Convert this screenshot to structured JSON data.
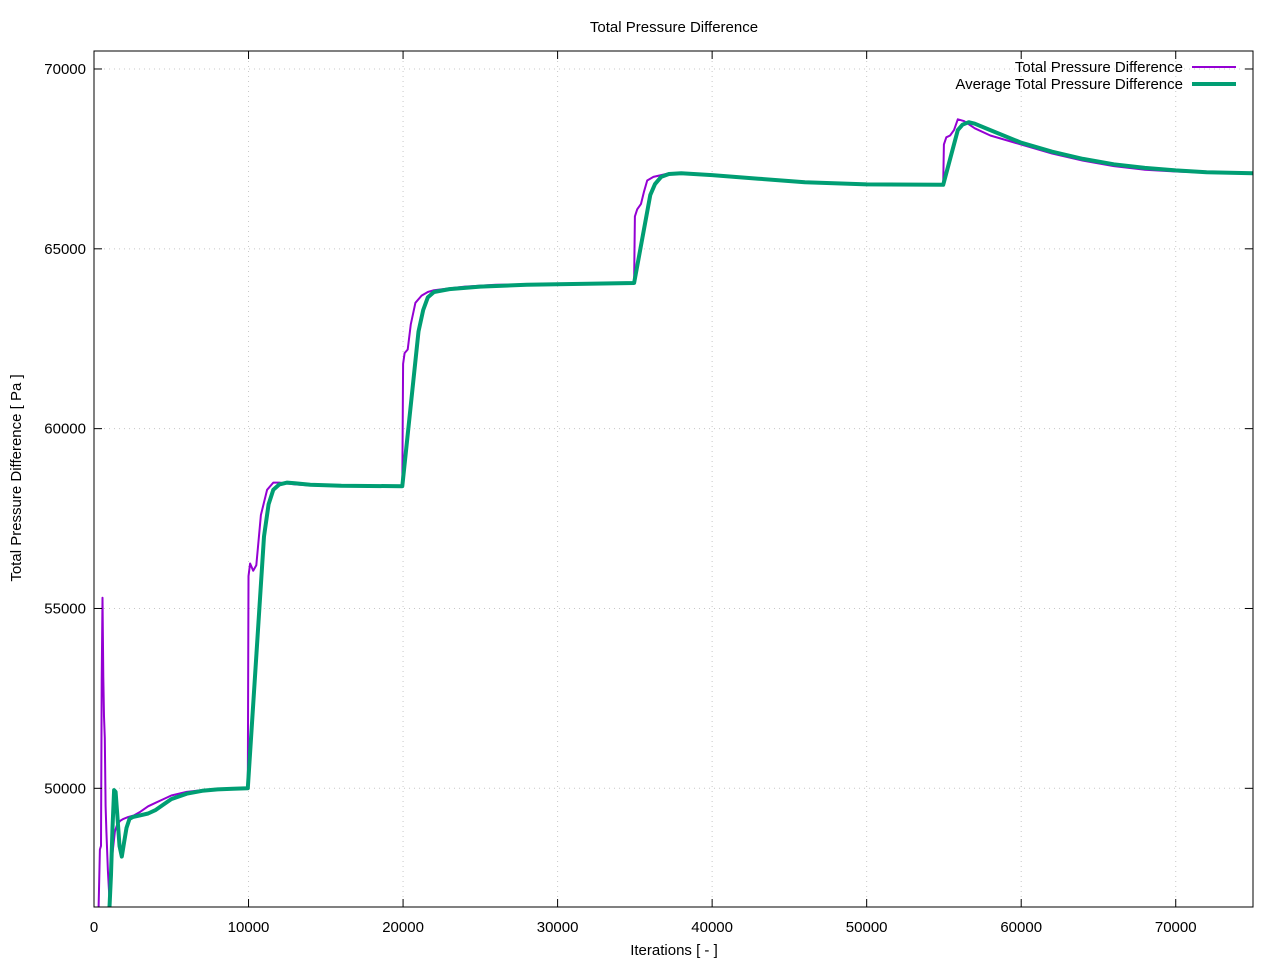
{
  "chart_data": {
    "type": "line",
    "title": "Total Pressure Difference",
    "xlabel": "Iterations [ - ]",
    "ylabel": "Total Pressure Difference [ Pa ]",
    "xlim": [
      0,
      75000
    ],
    "ylim": [
      46700,
      70500
    ],
    "xticks": [
      0,
      10000,
      20000,
      30000,
      40000,
      50000,
      60000,
      70000
    ],
    "yticks": [
      50000,
      55000,
      60000,
      65000,
      70000
    ],
    "grid": true,
    "legend_position": "top-right",
    "series": [
      {
        "name": "Total Pressure Difference",
        "color": "#9400d3",
        "line_width": "thin",
        "x": [
          300,
          380,
          450,
          500,
          550,
          600,
          650,
          700,
          750,
          800,
          900,
          1000,
          1050,
          1100,
          1200,
          1350,
          1500,
          1700,
          1900,
          2200,
          2600,
          3000,
          3500,
          4000,
          4500,
          5000,
          6000,
          7000,
          8000,
          9000,
          9950,
          10000,
          10100,
          10300,
          10500,
          10800,
          11200,
          11600,
          12000,
          13000,
          14000,
          15000,
          17000,
          19950,
          20000,
          20100,
          20300,
          20500,
          20800,
          21200,
          21600,
          22000,
          23000,
          24000,
          26000,
          30000,
          34950,
          35000,
          35150,
          35400,
          35600,
          35800,
          36200,
          36700,
          37200,
          38000,
          40000,
          43000,
          46000,
          50000,
          54950,
          55000,
          55150,
          55400,
          55650,
          55900,
          56300,
          57000,
          58000,
          60000,
          62000,
          64000,
          66000,
          68000,
          70000,
          72000,
          75000
        ],
        "y": [
          46700,
          48300,
          48400,
          53000,
          55300,
          53100,
          52000,
          51400,
          49500,
          48800,
          47700,
          46900,
          47100,
          47500,
          48200,
          48800,
          49000,
          49100,
          49150,
          49200,
          49250,
          49350,
          49500,
          49600,
          49700,
          49800,
          49900,
          49950,
          49980,
          50000,
          50000,
          55900,
          56250,
          56050,
          56200,
          57600,
          58300,
          58500,
          58500,
          58450,
          58420,
          58410,
          58400,
          58400,
          61800,
          62100,
          62200,
          62900,
          63500,
          63700,
          63800,
          63850,
          63900,
          63950,
          64000,
          64030,
          64050,
          65900,
          66100,
          66250,
          66600,
          66900,
          67000,
          67050,
          67100,
          67100,
          67050,
          66950,
          66850,
          66800,
          66780,
          67900,
          68100,
          68150,
          68300,
          68600,
          68550,
          68350,
          68150,
          67900,
          67650,
          67450,
          67300,
          67200,
          67150,
          67120,
          67100
        ]
      },
      {
        "name": "Average Total Pressure Difference",
        "color": "#009e73",
        "line_width": "thick",
        "x": [
          1000,
          1100,
          1200,
          1300,
          1400,
          1500,
          1650,
          1800,
          1950,
          2100,
          2300,
          2500,
          3000,
          3500,
          4000,
          4500,
          5000,
          6000,
          7000,
          8000,
          9000,
          9950,
          11000,
          11300,
          11600,
          12000,
          12500,
          13000,
          14000,
          16000,
          19950,
          21000,
          21300,
          21600,
          22000,
          23000,
          25000,
          28000,
          34950,
          36000,
          36300,
          36700,
          37200,
          38000,
          40000,
          43000,
          46000,
          50000,
          54950,
          55900,
          56200,
          56600,
          57000,
          58000,
          60000,
          62000,
          64000,
          66000,
          68000,
          70000,
          72000,
          75000
        ],
        "y": [
          46700,
          47600,
          48900,
          49950,
          49900,
          49300,
          48400,
          48100,
          48500,
          48900,
          49150,
          49200,
          49250,
          49300,
          49400,
          49550,
          49700,
          49850,
          49930,
          49970,
          49990,
          50000,
          57000,
          57900,
          58300,
          58450,
          58500,
          58480,
          58440,
          58410,
          58400,
          62700,
          63300,
          63650,
          63800,
          63880,
          63950,
          64000,
          64050,
          66500,
          66800,
          67000,
          67080,
          67100,
          67050,
          66950,
          66850,
          66790,
          66780,
          68300,
          68450,
          68520,
          68480,
          68300,
          67950,
          67700,
          67500,
          67350,
          67250,
          67180,
          67130,
          67100
        ]
      }
    ]
  }
}
